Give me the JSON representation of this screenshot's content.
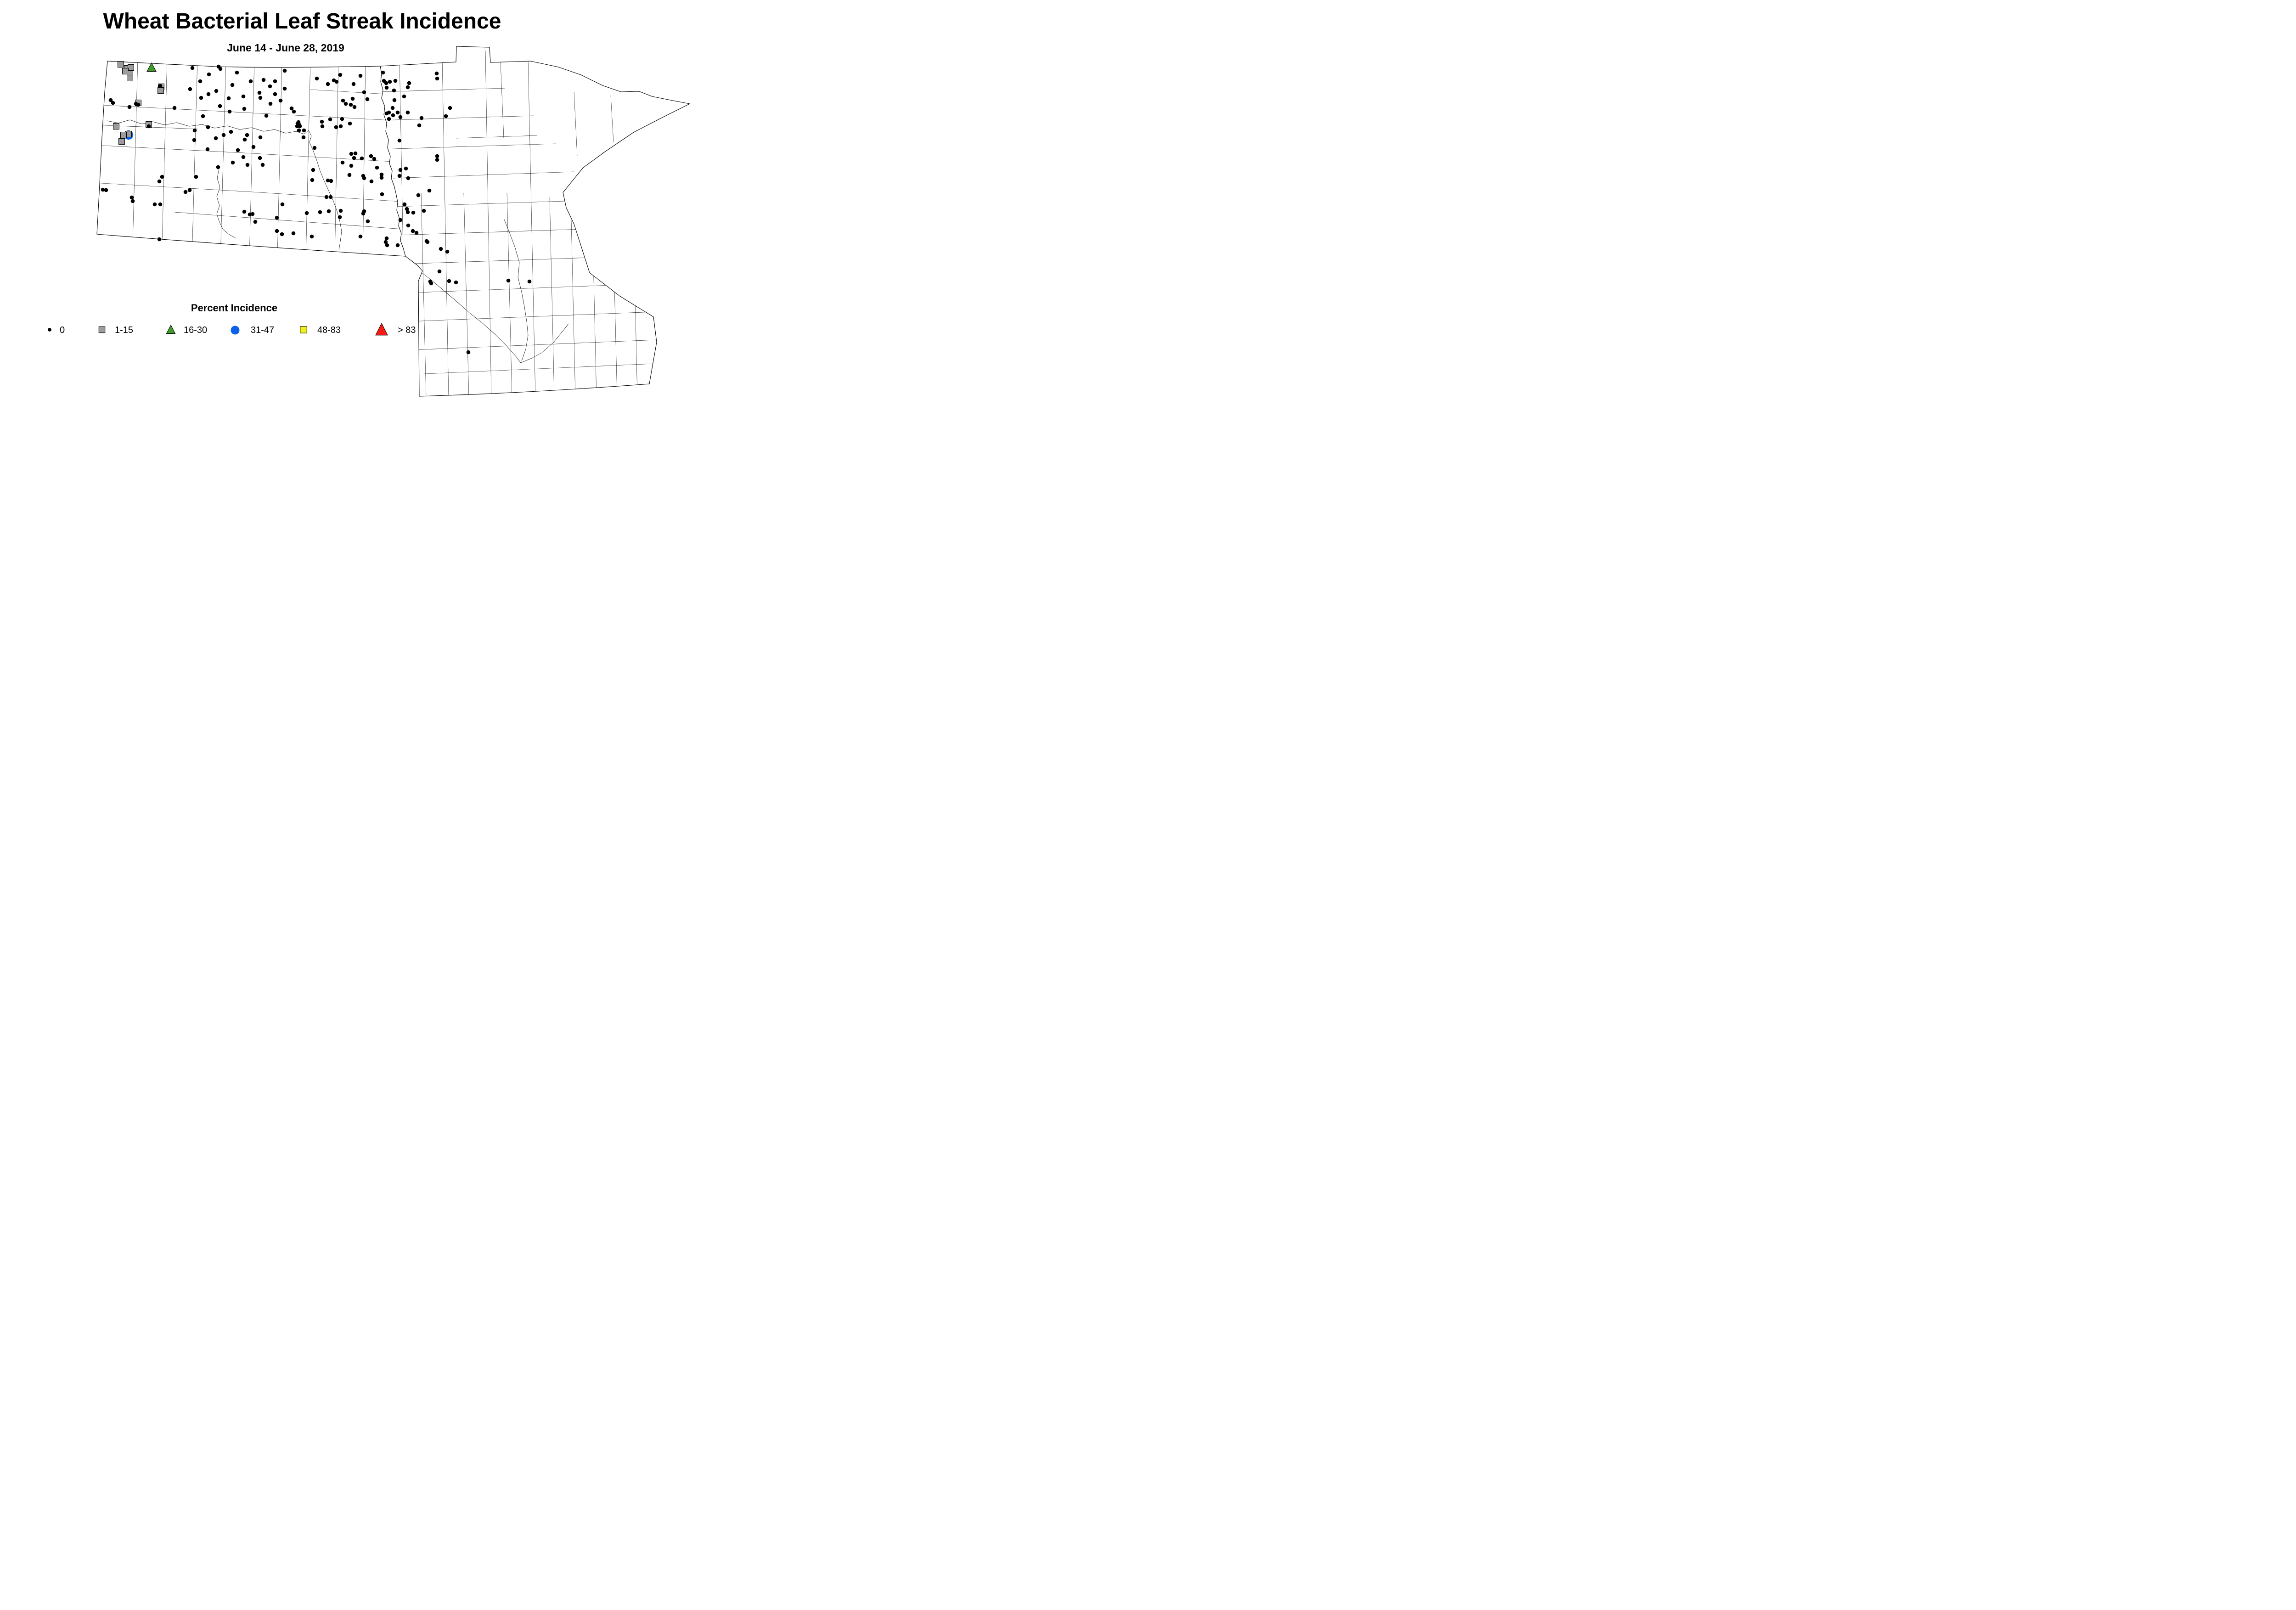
{
  "header": {
    "title": "Wheat Bacterial Leaf Streak Incidence",
    "subtitle": "June 14 - June 28, 2019"
  },
  "legend": {
    "title": "Percent Incidence",
    "items": [
      {
        "label": "0",
        "marker": "dot",
        "color": "#000000"
      },
      {
        "label": "1-15",
        "marker": "square",
        "color": "#9C9C9C"
      },
      {
        "label": "16-30",
        "marker": "triangle",
        "color": "#3D9E28"
      },
      {
        "label": "31-47",
        "marker": "circle",
        "color": "#0B62E8"
      },
      {
        "label": "48-83",
        "marker": "square",
        "color": "#EFEF1F"
      },
      {
        "label": "> 83",
        "marker": "triangle",
        "color": "#F91A12"
      }
    ]
  },
  "chart_data": {
    "type": "scatter",
    "map_region": "North Dakota and Minnesota county outline map",
    "legend_title": "Percent Incidence",
    "categories": [
      "0",
      "1-15",
      "16-30",
      "31-47",
      "48-83",
      "> 83"
    ],
    "coord_space": "1664x877",
    "marker_styles": {
      "dot": {
        "shape": "filled-circle",
        "color": "#000000",
        "r": 4.3
      },
      "square": {
        "shape": "square",
        "color": "#9C9C9C",
        "size": 13,
        "stroke": "#000000"
      },
      "triangle": {
        "shape": "triangle-up",
        "color": "#3D9E28",
        "h": 17,
        "stroke": "#000000"
      },
      "circle": {
        "shape": "circle",
        "color": "#0B62E8",
        "r": 10.2
      }
    },
    "points": {
      "incidence_0": [
        [
          419,
          148
        ],
        [
          476,
          145
        ],
        [
          480,
          150
        ],
        [
          455,
          162
        ],
        [
          516,
          158
        ],
        [
          436,
          177
        ],
        [
          506,
          185
        ],
        [
          349,
          187
        ],
        [
          414,
          194
        ],
        [
          471,
          198
        ],
        [
          454,
          205
        ],
        [
          438,
          213
        ],
        [
          498,
          214
        ],
        [
          241,
          218
        ],
        [
          246,
          224
        ],
        [
          282,
          233
        ],
        [
          296,
          226
        ],
        [
          301,
          228
        ],
        [
          380,
          235
        ],
        [
          479,
          231
        ],
        [
          500,
          243
        ],
        [
          442,
          253
        ],
        [
          324,
          275
        ],
        [
          453,
          277
        ],
        [
          424,
          284
        ],
        [
          423,
          305
        ],
        [
          503,
          287
        ],
        [
          487,
          294
        ],
        [
          470,
          301
        ],
        [
          530,
          210
        ],
        [
          546,
          177
        ],
        [
          574,
          174
        ],
        [
          599,
          177
        ],
        [
          620,
          154
        ],
        [
          588,
          188
        ],
        [
          620,
          193
        ],
        [
          565,
          202
        ],
        [
          599,
          205
        ],
        [
          690,
          171
        ],
        [
          714,
          183
        ],
        [
          727,
          175
        ],
        [
          733,
          178
        ],
        [
          741,
          163
        ],
        [
          567,
          213
        ],
        [
          611,
          219
        ],
        [
          589,
          226
        ],
        [
          532,
          237
        ],
        [
          580,
          252
        ],
        [
          635,
          236
        ],
        [
          640,
          243
        ],
        [
          650,
          266
        ],
        [
          648,
          269
        ],
        [
          652,
          272
        ],
        [
          647,
          275
        ],
        [
          653,
          275
        ],
        [
          651,
          284
        ],
        [
          662,
          284
        ],
        [
          701,
          265
        ],
        [
          702,
          275
        ],
        [
          719,
          260
        ],
        [
          732,
          277
        ],
        [
          742,
          275
        ],
        [
          661,
          299
        ],
        [
          538,
          294
        ],
        [
          533,
          304
        ],
        [
          567,
          299
        ],
        [
          552,
          320
        ],
        [
          518,
          327
        ],
        [
          685,
          322
        ],
        [
          530,
          342
        ],
        [
          566,
          344
        ],
        [
          507,
          354
        ],
        [
          539,
          359
        ],
        [
          572,
          359
        ],
        [
          475,
          364
        ],
        [
          682,
          370
        ],
        [
          680,
          392
        ],
        [
          714,
          393
        ],
        [
          721,
          394
        ],
        [
          746,
          354
        ],
        [
          747,
          219
        ],
        [
          753,
          226
        ],
        [
          764,
          228
        ],
        [
          772,
          233
        ],
        [
          768,
          215
        ],
        [
          800,
          216
        ],
        [
          745,
          259
        ],
        [
          762,
          269
        ],
        [
          785,
          165
        ],
        [
          770,
          183
        ],
        [
          834,
          158
        ],
        [
          836,
          176
        ],
        [
          849,
          178
        ],
        [
          861,
          176
        ],
        [
          841,
          181
        ],
        [
          842,
          191
        ],
        [
          891,
          181
        ],
        [
          888,
          190
        ],
        [
          858,
          197
        ],
        [
          793,
          201
        ],
        [
          951,
          160
        ],
        [
          952,
          171
        ],
        [
          880,
          210
        ],
        [
          859,
          218
        ],
        [
          855,
          235
        ],
        [
          842,
          247
        ],
        [
          847,
          245
        ],
        [
          856,
          251
        ],
        [
          866,
          245
        ],
        [
          888,
          245
        ],
        [
          872,
          255
        ],
        [
          847,
          259
        ],
        [
          980,
          235
        ],
        [
          971,
          253
        ],
        [
          918,
          257
        ],
        [
          913,
          273
        ],
        [
          870,
          306
        ],
        [
          952,
          340
        ],
        [
          952,
          348
        ],
        [
          765,
          335
        ],
        [
          774,
          334
        ],
        [
          771,
          344
        ],
        [
          788,
          345
        ],
        [
          808,
          340
        ],
        [
          815,
          346
        ],
        [
          765,
          361
        ],
        [
          821,
          365
        ],
        [
          761,
          381
        ],
        [
          791,
          383
        ],
        [
          793,
          388
        ],
        [
          831,
          380
        ],
        [
          831,
          387
        ],
        [
          872,
          370
        ],
        [
          884,
          367
        ],
        [
          870,
          383
        ],
        [
          889,
          388
        ],
        [
          809,
          395
        ],
        [
          832,
          423
        ],
        [
          911,
          425
        ],
        [
          935,
          415
        ],
        [
          881,
          445
        ],
        [
          886,
          455
        ],
        [
          888,
          462
        ],
        [
          900,
          463
        ],
        [
          923,
          459
        ],
        [
          793,
          460
        ],
        [
          791,
          465
        ],
        [
          801,
          482
        ],
        [
          872,
          479
        ],
        [
          889,
          491
        ],
        [
          899,
          503
        ],
        [
          907,
          507
        ],
        [
          785,
          515
        ],
        [
          842,
          519
        ],
        [
          840,
          527
        ],
        [
          843,
          534
        ],
        [
          866,
          534
        ],
        [
          931,
          527
        ],
        [
          711,
          429
        ],
        [
          720,
          429
        ],
        [
          615,
          445
        ],
        [
          532,
          461
        ],
        [
          544,
          467
        ],
        [
          550,
          466
        ],
        [
          556,
          483
        ],
        [
          603,
          474
        ],
        [
          668,
          464
        ],
        [
          697,
          462
        ],
        [
          716,
          460
        ],
        [
          742,
          459
        ],
        [
          740,
          473
        ],
        [
          603,
          503
        ],
        [
          614,
          510
        ],
        [
          639,
          508
        ],
        [
          679,
          515
        ],
        [
          452,
          325
        ],
        [
          353,
          385
        ],
        [
          347,
          395
        ],
        [
          427,
          385
        ],
        [
          224,
          413
        ],
        [
          231,
          414
        ],
        [
          404,
          418
        ],
        [
          413,
          414
        ],
        [
          287,
          430
        ],
        [
          289,
          438
        ],
        [
          337,
          445
        ],
        [
          349,
          445
        ],
        [
          347,
          521
        ],
        [
          929,
          525
        ],
        [
          960,
          542
        ],
        [
          974,
          548
        ],
        [
          957,
          591
        ],
        [
          937,
          613
        ],
        [
          939,
          617
        ],
        [
          978,
          612
        ],
        [
          993,
          615
        ],
        [
          1107,
          611
        ],
        [
          1153,
          613
        ],
        [
          1020,
          767
        ]
      ],
      "incidence_1_15": [
        [
          263,
          140
        ],
        [
          277,
          149
        ],
        [
          285,
          147
        ],
        [
          273,
          155
        ],
        [
          283,
          161
        ],
        [
          283,
          170
        ],
        [
          301,
          224
        ],
        [
          351,
          189
        ],
        [
          350,
          197
        ],
        [
          324,
          271
        ],
        [
          253,
          275
        ],
        [
          280,
          292
        ],
        [
          269,
          294
        ],
        [
          265,
          308
        ]
      ],
      "incidence_16_30": [
        [
          330,
          147
        ]
      ],
      "incidence_31_47": [
        [
          280,
          294
        ]
      ],
      "incidence_48_83": [],
      "incidence_gt_83": []
    }
  }
}
